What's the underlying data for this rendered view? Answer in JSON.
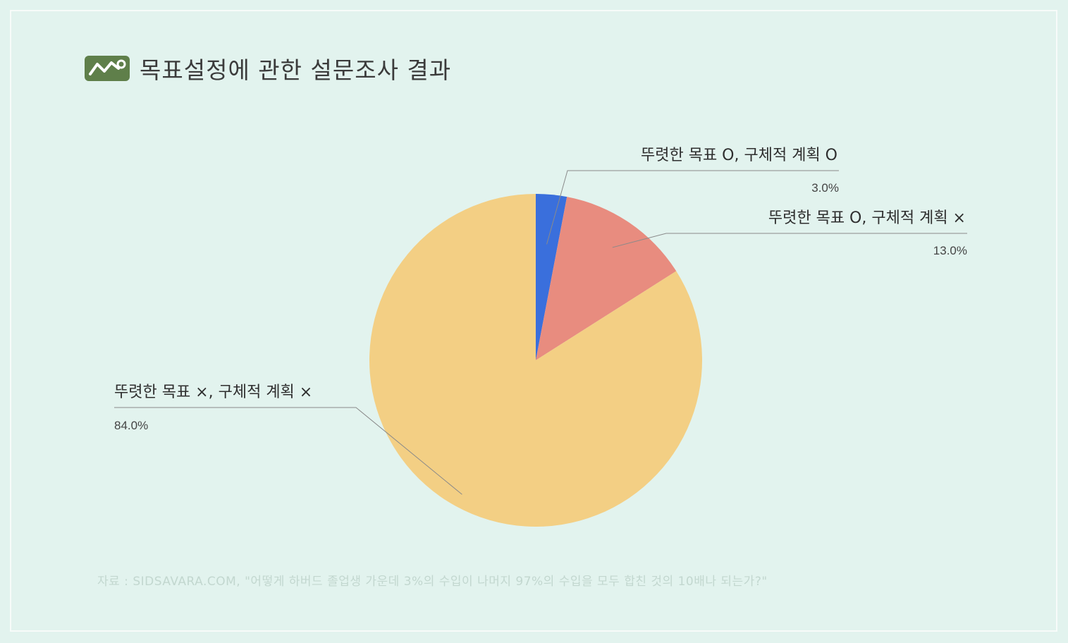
{
  "header": {
    "title": "목표설정에 관한 설문조사 결과",
    "icon": "line-chart-icon",
    "icon_bg": "#5f7f4a"
  },
  "source_note": "자료 : SIDSAVARA.COM, \"어떻게 하버드 졸업생 가운데 3%의 수입이 나머지 97%의 수입을 모두 합친 것의 10배나 되는가?\"",
  "chart_data": {
    "type": "pie",
    "title": "목표설정에 관한 설문조사 결과",
    "start": "12 o'clock",
    "direction": "clockwise",
    "slices": [
      {
        "label": "뚜렷한 목표 O, 구체적 계획 O",
        "value": 3.0,
        "value_label": "3.0%",
        "color": "#3a6fdc"
      },
      {
        "label": "뚜렷한 목표 O, 구체적 계획 ×",
        "value": 13.0,
        "value_label": "13.0%",
        "color": "#e88c7f"
      },
      {
        "label": "뚜렷한 목표 ×, 구체적 계획 ×",
        "value": 84.0,
        "value_label": "84.0%",
        "color": "#f3cf84"
      }
    ]
  }
}
